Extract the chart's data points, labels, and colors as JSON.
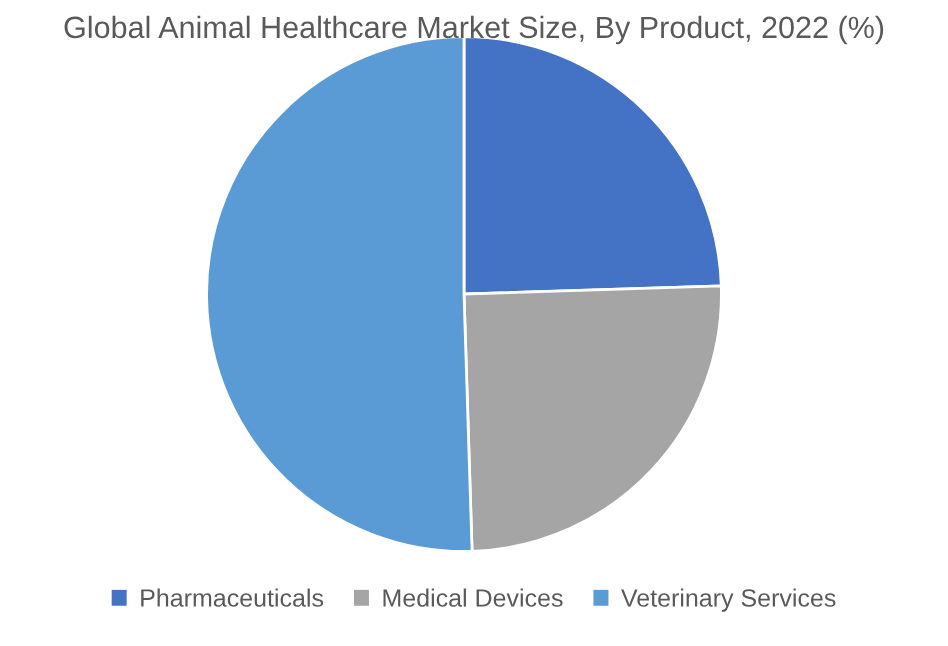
{
  "chart_data": {
    "type": "pie",
    "title": "Global Animal Healthcare Market Size, By Product, 2022 (%)",
    "categories": [
      "Pharmaceuticals",
      "Medical Devices",
      "Veterinary Services"
    ],
    "values": [
      24.5,
      25,
      50.5
    ],
    "colors": [
      "#4472c4",
      "#a5a5a5",
      "#5b9bd5"
    ],
    "legend": "bottom"
  }
}
